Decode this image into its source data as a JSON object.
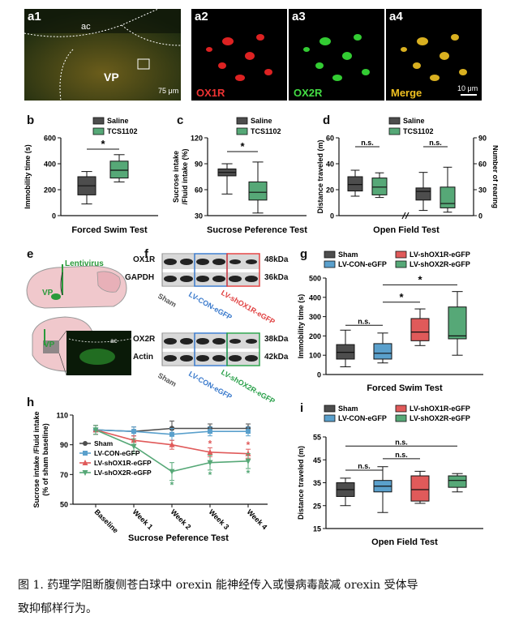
{
  "panels": {
    "a1": {
      "label": "a1",
      "region_ac": "ac",
      "region_vp": "VP",
      "scale": "75 μm"
    },
    "a2": {
      "label": "a2",
      "stain": "OX1R"
    },
    "a3": {
      "label": "a3",
      "stain": "OX2R"
    },
    "a4": {
      "label": "a4",
      "stain": "Merge",
      "scale": "10 μm"
    },
    "b": {
      "label": "b"
    },
    "c": {
      "label": "c"
    },
    "d": {
      "label": "d"
    },
    "e": {
      "label": "e",
      "virus": "Lentivirus",
      "region": "VP",
      "region2": "VP",
      "ac": "ac"
    },
    "f": {
      "label": "f",
      "blot1_rows": [
        "OX1R",
        "GAPDH"
      ],
      "blot1_kda": [
        "48kDa",
        "36kDa"
      ],
      "blot2_rows": [
        "OX2R",
        "Actin"
      ],
      "blot2_kda": [
        "38kDa",
        "42kDa"
      ],
      "lanes1": [
        "Sham",
        "LV-CON-eGFP",
        "LV-shOX1R-eGFP"
      ],
      "lanes2": [
        "Sham",
        "LV-CON-eGFP",
        "LV-shOX2R-eGFP"
      ]
    },
    "g": {
      "label": "g"
    },
    "h": {
      "label": "h"
    },
    "i": {
      "label": "i"
    }
  },
  "colors": {
    "saline": "#4d4d4d",
    "tcs": "#56a877",
    "sham": "#4d4d4d",
    "con": "#5aa0cc",
    "ox1r": "#e05a5a",
    "ox2r": "#56a877"
  },
  "chart_data": [
    {
      "id": "b",
      "type": "box",
      "title": "",
      "xlabel": "Forced Swim Test",
      "ylabel": "Immobility time (s)",
      "ylim": [
        0,
        600
      ],
      "yticks": [
        0,
        200,
        400,
        600
      ],
      "legend": [
        "Saline",
        "TCS1102"
      ],
      "significance": "*",
      "series": [
        {
          "name": "Saline",
          "min": 90,
          "q1": 160,
          "median": 230,
          "q3": 300,
          "max": 340
        },
        {
          "name": "TCS1102",
          "min": 260,
          "q1": 290,
          "median": 350,
          "q3": 420,
          "max": 470
        }
      ]
    },
    {
      "id": "c",
      "type": "box",
      "title": "",
      "xlabel": "Sucrose Peference Test",
      "ylabel": "Sucrose intake /Fluid intake (%)",
      "ylim": [
        30,
        120
      ],
      "yticks": [
        30,
        60,
        90,
        120
      ],
      "legend": [
        "Saline",
        "TCS1102"
      ],
      "significance": "*",
      "series": [
        {
          "name": "Saline",
          "min": 55,
          "q1": 76,
          "median": 80,
          "q3": 84,
          "max": 90
        },
        {
          "name": "TCS1102",
          "min": 33,
          "q1": 48,
          "median": 57,
          "q3": 69,
          "max": 92
        }
      ]
    },
    {
      "id": "d",
      "type": "box",
      "title": "",
      "xlabel": "Open Field Test",
      "ylabel": "Distance traveled (m)",
      "ylabel_right": "Number of rearing",
      "ylim": [
        0,
        60
      ],
      "yticks": [
        0,
        20,
        40,
        60
      ],
      "ylim_right": [
        0,
        90
      ],
      "yticks_right": [
        0,
        30,
        60,
        90
      ],
      "legend": [
        "Saline",
        "TCS1102"
      ],
      "significance": [
        "n.s.",
        "n.s."
      ],
      "series": [
        {
          "name": "Saline",
          "axis": "left",
          "min": 15,
          "q1": 19,
          "median": 24,
          "q3": 30,
          "max": 35
        },
        {
          "name": "TCS1102",
          "axis": "left",
          "min": 14,
          "q1": 16,
          "median": 22,
          "q3": 29,
          "max": 33
        },
        {
          "name": "Saline",
          "axis": "right",
          "min": 6,
          "q1": 18,
          "median": 28,
          "q3": 32,
          "max": 50
        },
        {
          "name": "TCS1102",
          "axis": "right",
          "min": 4,
          "q1": 9,
          "median": 14,
          "q3": 33,
          "max": 56
        }
      ]
    },
    {
      "id": "g",
      "type": "box",
      "title": "",
      "xlabel": "Forced Swim Test",
      "ylabel": "Immobility time (s)",
      "ylim": [
        0,
        500
      ],
      "yticks": [
        0,
        100,
        200,
        300,
        400,
        500
      ],
      "legend": [
        "Sham",
        "LV-CON-eGFP",
        "LV-shOX1R-eGFP",
        "LV-shOX2R-eGFP"
      ],
      "significance": [
        "n.s.",
        "*",
        "*"
      ],
      "series": [
        {
          "name": "Sham",
          "min": 40,
          "q1": 80,
          "median": 115,
          "q3": 155,
          "max": 230
        },
        {
          "name": "LV-CON-eGFP",
          "min": 60,
          "q1": 80,
          "median": 110,
          "q3": 160,
          "max": 215
        },
        {
          "name": "LV-shOX1R-eGFP",
          "min": 150,
          "q1": 175,
          "median": 220,
          "q3": 290,
          "max": 340
        },
        {
          "name": "LV-shOX2R-eGFP",
          "min": 100,
          "q1": 185,
          "median": 200,
          "q3": 350,
          "max": 430
        }
      ]
    },
    {
      "id": "h",
      "type": "line",
      "title": "",
      "xlabel": "Sucrose Peference Test",
      "ylabel": "Sucrose intake /Fluid intake (% of sham baseline)",
      "ylim": [
        50,
        110
      ],
      "yticks": [
        50,
        70,
        90,
        110
      ],
      "categories": [
        "Baseline",
        "Week 1",
        "Week 2",
        "Week 3",
        "Week 4"
      ],
      "series": [
        {
          "name": "Sham",
          "values": [
            100,
            99,
            101,
            101,
            101
          ],
          "err": [
            3,
            3,
            5,
            3,
            3
          ]
        },
        {
          "name": "LV-CON-eGFP",
          "values": [
            100,
            99,
            97,
            99,
            99
          ],
          "err": [
            3,
            3,
            4,
            3,
            3
          ]
        },
        {
          "name": "LV-shOX1R-eGFP",
          "values": [
            100,
            93,
            90,
            85,
            84
          ],
          "err": [
            3,
            3,
            3,
            3,
            3
          ]
        },
        {
          "name": "LV-shOX2R-eGFP",
          "values": [
            100,
            89,
            72,
            78,
            79
          ],
          "err": [
            3,
            5,
            6,
            5,
            5
          ]
        }
      ],
      "significance": {
        "LV-shOX1R-eGFP": [
          "",
          "",
          "",
          "*",
          "*"
        ],
        "LV-shOX2R-eGFP": [
          "",
          "",
          "*",
          "*",
          "*"
        ]
      }
    },
    {
      "id": "i",
      "type": "box",
      "title": "",
      "xlabel": "Open Field Test",
      "ylabel": "Distance traveled (m)",
      "ylim": [
        15,
        55
      ],
      "yticks": [
        15,
        25,
        35,
        45,
        55
      ],
      "legend": [
        "Sham",
        "LV-CON-eGFP",
        "LV-shOX1R-eGFP",
        "LV-shOX2R-eGFP"
      ],
      "significance": [
        "n.s.",
        "n.s.",
        "n.s."
      ],
      "series": [
        {
          "name": "Sham",
          "min": 25,
          "q1": 29,
          "median": 32,
          "q3": 35,
          "max": 37
        },
        {
          "name": "LV-CON-eGFP",
          "min": 22,
          "q1": 31,
          "median": 33.5,
          "q3": 36,
          "max": 42
        },
        {
          "name": "LV-shOX1R-eGFP",
          "min": 26,
          "q1": 27,
          "median": 32,
          "q3": 38,
          "max": 40
        },
        {
          "name": "LV-shOX2R-eGFP",
          "min": 31,
          "q1": 33,
          "median": 36,
          "q3": 38,
          "max": 39
        }
      ]
    }
  ],
  "caption": {
    "line1": "图 1. 药理学阻断腹侧苍白球中 orexin 能神经传入或慢病毒敲减 orexin 受体导",
    "line2": "致抑郁样行为。"
  }
}
